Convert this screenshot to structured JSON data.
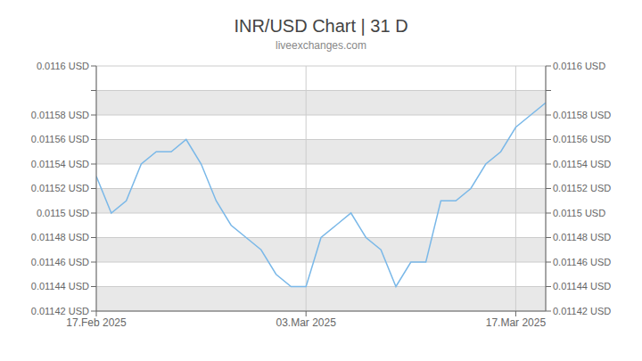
{
  "chart_data": {
    "type": "line",
    "title": "INR/USD Chart | 31 D",
    "subtitle": "liveexchanges.com",
    "color": "#7ab8e8",
    "grid": true,
    "x": [
      0,
      1,
      2,
      3,
      4,
      5,
      6,
      7,
      8,
      9,
      10,
      11,
      12,
      13,
      14,
      15,
      16,
      17,
      18,
      19,
      20,
      21,
      22,
      23,
      24,
      25,
      26,
      27,
      28,
      29,
      30
    ],
    "values": [
      0.01153,
      0.0115,
      0.01151,
      0.01154,
      0.01155,
      0.01155,
      0.01156,
      0.01154,
      0.01151,
      0.01149,
      0.01148,
      0.01147,
      0.01145,
      0.01144,
      0.01144,
      0.01148,
      0.01149,
      0.0115,
      0.01148,
      0.01147,
      0.01144,
      0.01146,
      0.01146,
      0.01151,
      0.01151,
      0.01152,
      0.01154,
      0.01155,
      0.01157,
      0.01158,
      0.01159
    ],
    "xlim": [
      0,
      30
    ],
    "xticks": [
      {
        "value": 0,
        "label": "17.Feb 2025"
      },
      {
        "value": 14,
        "label": "03.Mar 2025"
      },
      {
        "value": 28,
        "label": "17.Mar 2025"
      }
    ],
    "ylim": [
      0.01142,
      0.01162
    ],
    "yticks": [
      {
        "value": 0.01142,
        "label": "0.01142 USD"
      },
      {
        "value": 0.01144,
        "label": "0.01144 USD"
      },
      {
        "value": 0.01146,
        "label": "0.01146 USD"
      },
      {
        "value": 0.01148,
        "label": "0.01148 USD"
      },
      {
        "value": 0.0115,
        "label": "0.0115 USD"
      },
      {
        "value": 0.01152,
        "label": "0.01152 USD"
      },
      {
        "value": 0.01154,
        "label": "0.01154 USD"
      },
      {
        "value": 0.01156,
        "label": "0.01156 USD"
      },
      {
        "value": 0.01158,
        "label": "0.01158 USD"
      },
      {
        "value": 0.0116,
        "label": ""
      },
      {
        "value": 0.01162,
        "label": "0.0116 USD"
      }
    ],
    "y2lim": [
      0.01142,
      0.01162
    ],
    "y2ticks": [
      {
        "value": 0.01142,
        "label": "0.01142 USD"
      },
      {
        "value": 0.01144,
        "label": "0.01144 USD"
      },
      {
        "value": 0.01146,
        "label": "0.01146 USD"
      },
      {
        "value": 0.01148,
        "label": "0.01148 USD"
      },
      {
        "value": 0.0115,
        "label": "0.0115 USD"
      },
      {
        "value": 0.01152,
        "label": "0.01152 USD"
      },
      {
        "value": 0.01154,
        "label": "0.01154 USD"
      },
      {
        "value": 0.01156,
        "label": "0.01156 USD"
      },
      {
        "value": 0.01158,
        "label": "0.01158 USD"
      },
      {
        "value": 0.0116,
        "label": ""
      },
      {
        "value": 0.01162,
        "label": "0.0116 USD"
      }
    ]
  }
}
